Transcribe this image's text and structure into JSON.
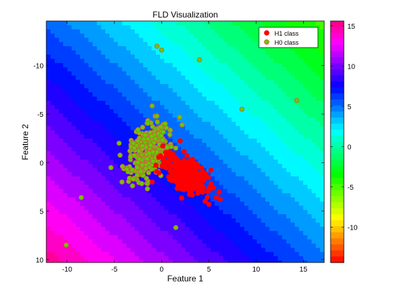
{
  "chart_data": {
    "type": "scatter",
    "title": "FLD Visualization",
    "xlabel": "Feature 1",
    "ylabel": "Feature 2",
    "xlim": [
      -12.2,
      17.2
    ],
    "ylim": [
      -14.6,
      10.3
    ],
    "y_reversed": true,
    "x_ticks": [
      -10,
      -5,
      0,
      5,
      10,
      15
    ],
    "y_ticks": [
      -10,
      -5,
      0,
      5,
      10
    ],
    "grid": false,
    "legend_position": "top-right",
    "background": "filled contour of the FLD projection (hsv colormap)",
    "colorbar": {
      "range": [
        -14.4,
        15.6
      ],
      "ticks": [
        15,
        10,
        5,
        0,
        -5,
        -10
      ],
      "colormap": "hsv"
    },
    "series": [
      {
        "name": "H1 class",
        "color": "#ff0000",
        "edge": "#ff0000",
        "cluster": {
          "center": [
            2.6,
            1.2
          ],
          "spread": [
            1.1,
            0.8
          ],
          "count": 420
        },
        "points": [
          [
            5.0,
            4.3
          ],
          [
            5.8,
            3.6
          ],
          [
            6.2,
            3.8
          ],
          [
            4.9,
            3.0
          ],
          [
            5.5,
            2.6
          ],
          [
            -1.0,
            2.0
          ],
          [
            1.0,
            0.4
          ],
          [
            3.8,
            2.9
          ],
          [
            4.6,
            4.0
          ]
        ]
      },
      {
        "name": "H0 class",
        "color": "#66cc00",
        "edge": "#c8643c",
        "cluster": {
          "center": [
            -1.4,
            -1.1
          ],
          "spread": [
            1.0,
            1.4
          ],
          "count": 320
        },
        "points": [
          [
            -0.5,
            -12.0
          ],
          [
            0.0,
            -11.6
          ],
          [
            4.0,
            -10.6
          ],
          [
            8.5,
            -5.5
          ],
          [
            14.3,
            -6.4
          ],
          [
            -0.5,
            -4.8
          ],
          [
            -3.0,
            -2.0
          ],
          [
            -4.5,
            -2.0
          ],
          [
            -3.4,
            1.6
          ],
          [
            -3.0,
            1.7
          ],
          [
            -4.2,
            2.0
          ],
          [
            -1.5,
            2.7
          ],
          [
            -8.5,
            3.6
          ],
          [
            -10.1,
            8.5
          ],
          [
            1.5,
            6.7
          ],
          [
            -2.5,
            -3.4
          ],
          [
            4.2,
            1.2
          ]
        ]
      }
    ]
  }
}
